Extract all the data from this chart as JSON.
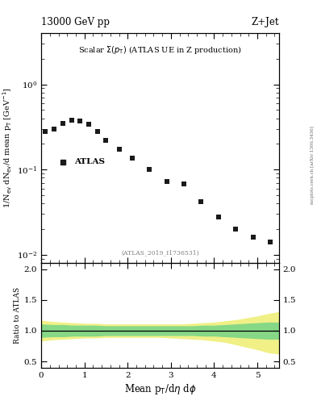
{
  "title_left": "13000 GeV pp",
  "title_right": "Z+Jet",
  "plot_label": "Scalar $\\Sigma(p_\\mathrm{T})$ (ATLAS UE in Z production)",
  "atlas_label": "ATLAS",
  "inspire_label": "(ATLAS_2019_I1736531)",
  "side_label": "mcplots.cern.ch [arXiv:1306.3436]",
  "ylabel_main": "1/N$_{\\mathrm{ev}}$ dN$_{\\mathrm{ev}}$/d mean p$_\\mathrm{T}$ [GeV$^{-1}$]",
  "ylabel_ratio": "Ratio to ATLAS",
  "xlabel": "Mean p$_\\mathrm{T}$/d$\\eta$ d$\\phi$",
  "data_x": [
    0.1,
    0.3,
    0.5,
    0.7,
    0.9,
    1.1,
    1.3,
    1.5,
    1.8,
    2.1,
    2.5,
    2.9,
    3.3,
    3.7,
    4.1,
    4.5,
    4.9,
    5.3
  ],
  "data_y": [
    0.28,
    0.3,
    0.35,
    0.38,
    0.37,
    0.34,
    0.28,
    0.22,
    0.175,
    0.135,
    0.1,
    0.072,
    0.068,
    0.042,
    0.028,
    0.02,
    0.016,
    0.014
  ],
  "ratio_x": [
    0.0,
    0.25,
    0.5,
    0.75,
    1.0,
    1.25,
    1.5,
    1.75,
    2.0,
    2.25,
    2.5,
    2.75,
    3.0,
    3.25,
    3.5,
    3.75,
    4.0,
    4.25,
    4.5,
    4.75,
    5.0,
    5.25,
    5.5
  ],
  "ratio_green_upper": [
    1.1,
    1.09,
    1.09,
    1.08,
    1.08,
    1.08,
    1.07,
    1.07,
    1.07,
    1.07,
    1.07,
    1.07,
    1.07,
    1.07,
    1.07,
    1.08,
    1.08,
    1.09,
    1.1,
    1.11,
    1.12,
    1.13,
    1.13
  ],
  "ratio_green_lower": [
    0.9,
    0.91,
    0.91,
    0.92,
    0.92,
    0.92,
    0.93,
    0.93,
    0.93,
    0.93,
    0.93,
    0.93,
    0.93,
    0.93,
    0.93,
    0.92,
    0.92,
    0.91,
    0.9,
    0.89,
    0.88,
    0.87,
    0.87
  ],
  "ratio_yellow_upper": [
    1.16,
    1.14,
    1.13,
    1.12,
    1.11,
    1.11,
    1.1,
    1.1,
    1.1,
    1.1,
    1.1,
    1.1,
    1.1,
    1.1,
    1.11,
    1.12,
    1.13,
    1.15,
    1.17,
    1.2,
    1.23,
    1.27,
    1.3
  ],
  "ratio_yellow_lower": [
    0.84,
    0.86,
    0.87,
    0.88,
    0.89,
    0.89,
    0.9,
    0.9,
    0.9,
    0.9,
    0.9,
    0.9,
    0.89,
    0.88,
    0.87,
    0.86,
    0.84,
    0.82,
    0.78,
    0.74,
    0.7,
    0.65,
    0.63
  ],
  "xlim": [
    0,
    5.5
  ],
  "ylim_main": [
    0.008,
    4.0
  ],
  "ylim_ratio": [
    0.4,
    2.1
  ],
  "ratio_yticks": [
    0.5,
    1.0,
    1.5,
    2.0
  ],
  "marker_color": "#1a1a1a",
  "marker_size": 4.5,
  "green_color": "#86d886",
  "yellow_color": "#f0f086",
  "bg_color": "#ffffff"
}
